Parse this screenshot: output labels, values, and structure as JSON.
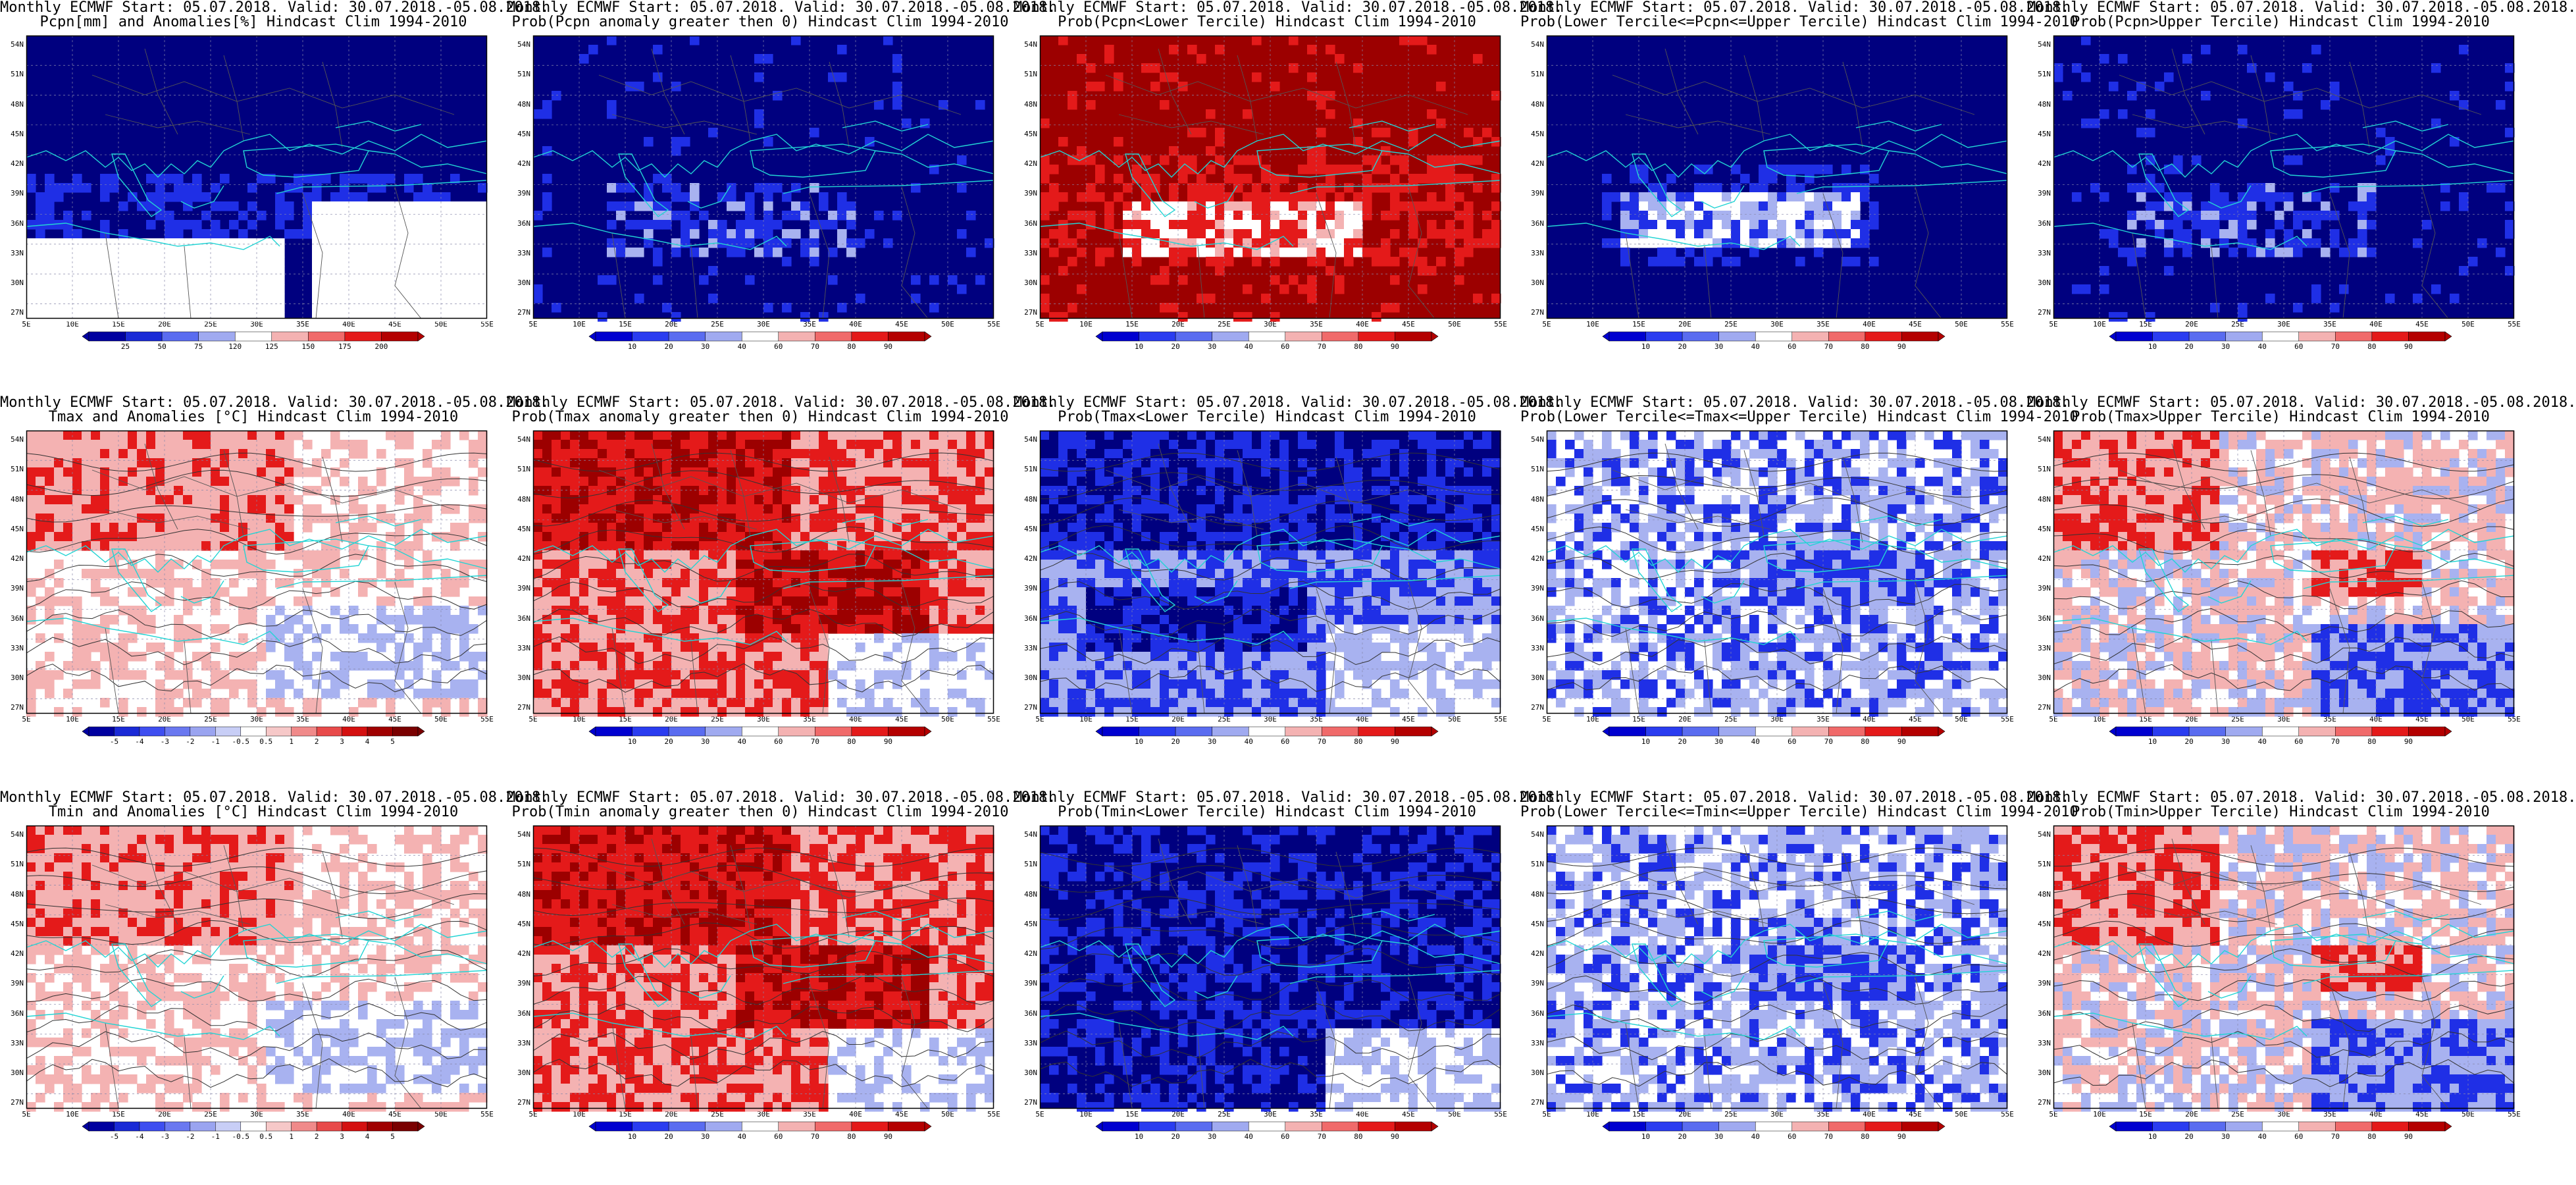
{
  "map_axes": {
    "lat_labels": [
      "54N",
      "51N",
      "48N",
      "45N",
      "42N",
      "39N",
      "36N",
      "33N",
      "30N",
      "27N"
    ],
    "lon_labels": [
      "5E",
      "10E",
      "15E",
      "20E",
      "25E",
      "30E",
      "35E",
      "40E",
      "45E",
      "50E",
      "55E"
    ]
  },
  "colors": {
    "deep_blue": "#00007f",
    "blue": "#1f2fe6",
    "light_blue": "#a8b2f0",
    "white": "#ffffff",
    "pink": "#f4b2b2",
    "red": "#e41a1a",
    "dark_red": "#9c0000",
    "coast": "#22d4d4",
    "border": "#555555",
    "contour": "#333333"
  },
  "colorbars": {
    "precip": [
      "25",
      "50",
      "75",
      "120",
      "125",
      "150",
      "175",
      "200"
    ],
    "prob": [
      "10",
      "20",
      "30",
      "40",
      "60",
      "70",
      "80",
      "90"
    ],
    "anom": [
      "-5",
      "-4",
      "-3",
      "-2",
      "-1",
      "-0.5",
      "0.5",
      "1",
      "2",
      "3",
      "4",
      "5"
    ]
  },
  "panels": [
    {
      "id": "pcpn-anom",
      "t1": "Monthly ECMWF Start: 05.07.2018. Valid: 30.07.2018.-05.08.2018.",
      "t2": "Pcpn[mm] and Anomalies[%] Hindcast Clim 1994-2010",
      "cbar": "precip",
      "style": "pcpn-anom",
      "contours": false
    },
    {
      "id": "pcpn-prob-gt0",
      "t1": "Monthly ECMWF Start: 05.07.2018. Valid: 30.07.2018.-05.08.2018.",
      "t2": "Prob(Pcpn anomaly greater then 0) Hindcast Clim 1994-2010",
      "cbar": "prob",
      "style": "blue-deep",
      "contours": false
    },
    {
      "id": "pcpn-prob-lower",
      "t1": "Monthly ECMWF Start: 05.07.2018. Valid: 30.07.2018.-05.08.2018.",
      "t2": "Prob(Pcpn<Lower Tercile) Hindcast Clim 1994-2010",
      "cbar": "prob",
      "style": "red-deep",
      "contours": false
    },
    {
      "id": "pcpn-prob-middle",
      "t1": "Monthly ECMWF Start: 05.07.2018. Valid: 30.07.2018.-05.08.2018.",
      "t2": "Prob(Lower Tercile<=Pcpn<=Upper Tercile) Hindcast Clim 1994-2010",
      "cbar": "prob",
      "style": "blue-deep-white",
      "contours": false
    },
    {
      "id": "pcpn-prob-upper",
      "t1": "Monthly ECMWF Start: 05.07.2018. Valid: 30.07.2018.-05.08.2018.",
      "t2": "Prob(Pcpn>Upper Tercile) Hindcast Clim 1994-2010",
      "cbar": "prob",
      "style": "blue-deep",
      "contours": false
    },
    {
      "id": "tmax-anom",
      "t1": "Monthly ECMWF Start: 05.07.2018. Valid: 30.07.2018.-05.08.2018.",
      "t2": "Tmax and Anomalies [°C] Hindcast Clim 1994-2010",
      "cbar": "anom",
      "style": "pink-warm",
      "contours": true
    },
    {
      "id": "tmax-prob-gt0",
      "t1": "Monthly ECMWF Start: 05.07.2018. Valid: 30.07.2018.-05.08.2018.",
      "t2": "Prob(Tmax anomaly greater then 0) Hindcast Clim 1994-2010",
      "cbar": "prob",
      "style": "red-warm",
      "contours": true
    },
    {
      "id": "tmax-prob-lower",
      "t1": "Monthly ECMWF Start: 05.07.2018. Valid: 30.07.2018.-05.08.2018.",
      "t2": "Prob(Tmax<Lower Tercile) Hindcast Clim 1994-2010",
      "cbar": "prob",
      "style": "blue-cold",
      "contours": true
    },
    {
      "id": "tmax-prob-middle",
      "t1": "Monthly ECMWF Start: 05.07.2018. Valid: 30.07.2018.-05.08.2018.",
      "t2": "Prob(Lower Tercile<=Tmax<=Upper Tercile) Hindcast Clim 1994-2010",
      "cbar": "prob",
      "style": "lightblue-mix",
      "contours": true
    },
    {
      "id": "tmax-prob-upper",
      "t1": "Monthly ECMWF Start: 05.07.2018. Valid: 30.07.2018.-05.08.2018.",
      "t2": "Prob(Tmax>Upper Tercile) Hindcast Clim 1994-2010",
      "cbar": "prob",
      "style": "mixed",
      "contours": true
    },
    {
      "id": "tmin-anom",
      "t1": "Monthly ECMWF Start: 05.07.2018. Valid: 30.07.2018.-05.08.2018.",
      "t2": "Tmin and Anomalies [°C] Hindcast Clim 1994-2010",
      "cbar": "anom",
      "style": "pink-warm",
      "contours": true
    },
    {
      "id": "tmin-prob-gt0",
      "t1": "Monthly ECMWF Start: 05.07.2018. Valid: 30.07.2018.-05.08.2018.",
      "t2": "Prob(Tmin anomaly greater then 0) Hindcast Clim 1994-2010",
      "cbar": "prob",
      "style": "red-warm",
      "contours": true
    },
    {
      "id": "tmin-prob-lower",
      "t1": "Monthly ECMWF Start: 05.07.2018. Valid: 30.07.2018.-05.08.2018.",
      "t2": "Prob(Tmin<Lower Tercile) Hindcast Clim 1994-2010",
      "cbar": "prob",
      "style": "blue-deep-sw",
      "contours": true
    },
    {
      "id": "tmin-prob-middle",
      "t1": "Monthly ECMWF Start: 05.07.2018. Valid: 30.07.2018.-05.08.2018.",
      "t2": "Prob(Lower Tercile<=Tmin<=Upper Tercile) Hindcast Clim 1994-2010",
      "cbar": "prob",
      "style": "lightblue-mix",
      "contours": true
    },
    {
      "id": "tmin-prob-upper",
      "t1": "Monthly ECMWF Start: 05.07.2018. Valid: 30.07.2018.-05.08.2018.",
      "t2": "Prob(Tmin>Upper Tercile) Hindcast Clim 1994-2010",
      "cbar": "prob",
      "style": "mixed",
      "contours": true
    }
  ]
}
